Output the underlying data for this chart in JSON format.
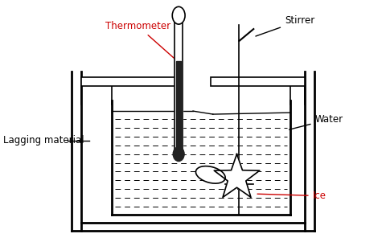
{
  "fig_width": 4.81,
  "fig_height": 3.01,
  "dpi": 100,
  "bg_color": "#ffffff",
  "line_color": "#000000",
  "labels": {
    "thermometer": "Thermometer",
    "stirrer": "Stirrer",
    "lagging": "Lagging material",
    "water": "Water",
    "ice": "Ice"
  },
  "red_color": "#cc0000",
  "black_color": "#000000",
  "dark_gray": "#222222"
}
